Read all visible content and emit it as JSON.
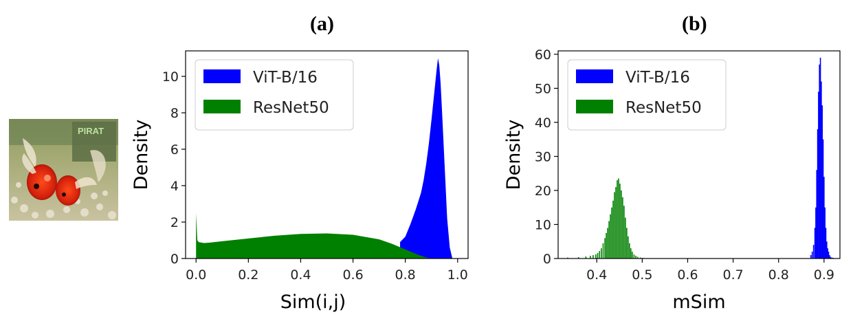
{
  "panels": {
    "a_label": "(a)",
    "b_label": "(b)"
  },
  "colors": {
    "vit": "#0000ff",
    "resnet": "#008000"
  },
  "thumbnail": {
    "icon": "goldfish-aquarium-photo",
    "sign_text": "PIRAT"
  },
  "chart_data": [
    {
      "type": "area",
      "panel": "(a)",
      "title": "",
      "xlabel": "Sim(i,j)",
      "ylabel": "Density",
      "xlim": [
        -0.04,
        1.04
      ],
      "ylim": [
        0,
        11.4
      ],
      "xticks": [
        0.0,
        0.2,
        0.4,
        0.6,
        0.8,
        1.0
      ],
      "xtick_labels": [
        "0.0",
        "0.2",
        "0.4",
        "0.6",
        "0.8",
        "1.0"
      ],
      "yticks": [
        0,
        2,
        4,
        6,
        8,
        10
      ],
      "ytick_labels": [
        "0",
        "2",
        "4",
        "6",
        "8",
        "10"
      ],
      "grid": false,
      "legend": "top-left",
      "series": [
        {
          "name": "ViT-B/16",
          "color": "#0000ff",
          "x": [
            0.78,
            0.8,
            0.82,
            0.84,
            0.86,
            0.87,
            0.88,
            0.89,
            0.9,
            0.91,
            0.92,
            0.925,
            0.93,
            0.935,
            0.94,
            0.95,
            0.96,
            0.97,
            0.98
          ],
          "y": [
            0.9,
            1.2,
            1.9,
            2.7,
            3.6,
            4.3,
            5.2,
            6.3,
            7.6,
            9.0,
            10.4,
            11.0,
            10.6,
            9.6,
            8.2,
            5.2,
            2.2,
            0.6,
            0.0
          ]
        },
        {
          "name": "ResNet50",
          "color": "#008000",
          "x": [
            0.0,
            0.0,
            0.005,
            0.01,
            0.03,
            0.05,
            0.1,
            0.2,
            0.3,
            0.4,
            0.5,
            0.6,
            0.7,
            0.75,
            0.8,
            0.85,
            0.88,
            0.9
          ],
          "y": [
            0.0,
            2.5,
            1.0,
            0.9,
            0.85,
            0.87,
            0.95,
            1.1,
            1.25,
            1.35,
            1.38,
            1.3,
            1.05,
            0.8,
            0.5,
            0.2,
            0.06,
            0.0
          ]
        }
      ]
    },
    {
      "type": "bar",
      "panel": "(b)",
      "title": "",
      "xlabel": "mSim",
      "ylabel": "Density",
      "xlim": [
        0.315,
        0.935
      ],
      "ylim": [
        0,
        61
      ],
      "xticks": [
        0.4,
        0.5,
        0.6,
        0.7,
        0.8,
        0.9
      ],
      "xtick_labels": [
        "0.4",
        "0.5",
        "0.6",
        "0.7",
        "0.8",
        "0.9"
      ],
      "yticks": [
        0,
        10,
        20,
        30,
        40,
        50,
        60
      ],
      "ytick_labels": [
        "0",
        "10",
        "20",
        "30",
        "40",
        "50",
        "60"
      ],
      "grid": false,
      "legend": "top-left",
      "series": [
        {
          "name": "ViT-B/16",
          "color": "#0000ff",
          "bin_width": 0.0024,
          "x": [
            0.871,
            0.874,
            0.877,
            0.88,
            0.882,
            0.884,
            0.886,
            0.888,
            0.89,
            0.892,
            0.894,
            0.896,
            0.898,
            0.9,
            0.902,
            0.904,
            0.906,
            0.908,
            0.91,
            0.912,
            0.914,
            0.917,
            0.92
          ],
          "y": [
            1.0,
            2.0,
            4.0,
            9.0,
            15.0,
            26.0,
            38.0,
            49.0,
            57.0,
            59.0,
            52.0,
            45.0,
            35.0,
            24.0,
            15.0,
            9.0,
            5.0,
            3.0,
            2.0,
            1.0,
            0.5,
            0.3,
            0.2
          ]
        },
        {
          "name": "ResNet50",
          "color": "#008000",
          "bin_width": 0.0024,
          "x": [
            0.336,
            0.36,
            0.376,
            0.386,
            0.392,
            0.398,
            0.402,
            0.406,
            0.41,
            0.414,
            0.418,
            0.421,
            0.424,
            0.427,
            0.43,
            0.433,
            0.436,
            0.439,
            0.442,
            0.445,
            0.448,
            0.451,
            0.454,
            0.457,
            0.46,
            0.463,
            0.466,
            0.469,
            0.472,
            0.475,
            0.478,
            0.482,
            0.486,
            0.49,
            0.496,
            0.502
          ],
          "y": [
            0.3,
            0.4,
            0.6,
            0.8,
            1.0,
            1.2,
            1.6,
            2.2,
            3.0,
            4.5,
            6.0,
            7.5,
            9.0,
            11.0,
            13.0,
            15.0,
            17.0,
            19.5,
            21.0,
            23.0,
            23.5,
            22.0,
            20.0,
            18.0,
            15.5,
            12.0,
            9.0,
            6.5,
            4.5,
            3.0,
            2.0,
            1.2,
            0.8,
            0.5,
            0.3,
            0.2
          ]
        }
      ]
    }
  ]
}
